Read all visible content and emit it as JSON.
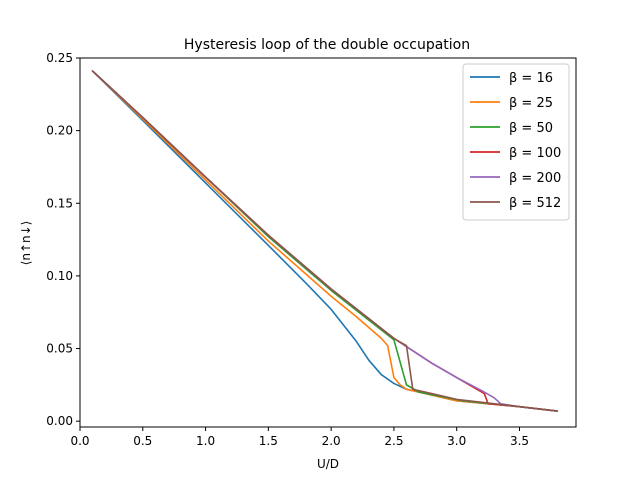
{
  "chart_data": {
    "type": "line",
    "title": "Hysteresis loop of the double occupation",
    "xlabel": "U/D",
    "ylabel": "⟨n↑n↓⟩",
    "xlim": [
      0.0,
      3.95
    ],
    "ylim": [
      -0.004,
      0.25
    ],
    "xticks": [
      0.0,
      0.5,
      1.0,
      1.5,
      2.0,
      2.5,
      3.0,
      3.5
    ],
    "xtick_labels": [
      "0.0",
      "0.5",
      "1.0",
      "1.5",
      "2.0",
      "2.5",
      "3.0",
      "3.5"
    ],
    "yticks": [
      0.0,
      0.05,
      0.1,
      0.15,
      0.2,
      0.25
    ],
    "ytick_labels": [
      "0.00",
      "0.05",
      "0.10",
      "0.15",
      "0.20",
      "0.25"
    ],
    "grid": false,
    "legend_position": "top-right",
    "series": [
      {
        "name": "β = 16",
        "color": "#1f77b4",
        "points": [
          [
            0.1,
            0.241
          ],
          [
            0.5,
            0.207
          ],
          [
            1.0,
            0.164
          ],
          [
            1.5,
            0.121
          ],
          [
            1.8,
            0.095
          ],
          [
            2.0,
            0.077
          ],
          [
            2.2,
            0.055
          ],
          [
            2.3,
            0.042
          ],
          [
            2.4,
            0.032
          ],
          [
            2.5,
            0.026
          ],
          [
            2.6,
            0.022
          ],
          [
            3.0,
            0.014
          ],
          [
            3.5,
            0.01
          ],
          [
            3.8,
            0.007
          ]
        ]
      },
      {
        "name": "β = 25",
        "color": "#ff7f0e",
        "points": [
          [
            0.1,
            0.241
          ],
          [
            0.5,
            0.208
          ],
          [
            1.0,
            0.166
          ],
          [
            1.5,
            0.124
          ],
          [
            2.0,
            0.086
          ],
          [
            2.2,
            0.072
          ],
          [
            2.4,
            0.057
          ],
          [
            2.45,
            0.052
          ],
          [
            2.5,
            0.03
          ],
          [
            2.55,
            0.025
          ],
          [
            2.6,
            0.022
          ],
          [
            3.0,
            0.014
          ],
          [
            3.5,
            0.01
          ],
          [
            3.8,
            0.007
          ]
        ]
      },
      {
        "name": "β = 50",
        "color": "#2ca02c",
        "points": [
          [
            0.1,
            0.241
          ],
          [
            0.5,
            0.209
          ],
          [
            1.0,
            0.168
          ],
          [
            1.5,
            0.127
          ],
          [
            2.0,
            0.09
          ],
          [
            2.5,
            0.056
          ],
          [
            2.6,
            0.025
          ],
          [
            2.7,
            0.02
          ],
          [
            3.05,
            0.014
          ],
          [
            3.5,
            0.01
          ],
          [
            3.8,
            0.007
          ]
        ]
      },
      {
        "name": "β = 100",
        "color": "#d62728",
        "points": [
          [
            0.1,
            0.241
          ],
          [
            0.5,
            0.209
          ],
          [
            1.0,
            0.168
          ],
          [
            1.5,
            0.128
          ],
          [
            2.0,
            0.091
          ],
          [
            2.5,
            0.057
          ],
          [
            2.8,
            0.04
          ],
          [
            3.0,
            0.03
          ],
          [
            3.22,
            0.019
          ],
          [
            3.25,
            0.012
          ],
          [
            3.5,
            0.01
          ],
          [
            3.8,
            0.007
          ]
        ]
      },
      {
        "name": "β = 200",
        "color": "#9467bd",
        "points": [
          [
            0.1,
            0.241
          ],
          [
            0.5,
            0.209
          ],
          [
            1.0,
            0.168
          ],
          [
            1.5,
            0.128
          ],
          [
            2.0,
            0.091
          ],
          [
            2.5,
            0.057
          ],
          [
            2.8,
            0.04
          ],
          [
            3.0,
            0.03
          ],
          [
            3.2,
            0.021
          ],
          [
            3.3,
            0.016
          ],
          [
            3.35,
            0.012
          ],
          [
            3.5,
            0.01
          ],
          [
            3.8,
            0.007
          ]
        ]
      },
      {
        "name": "β = 512",
        "color": "#8c564b",
        "points": [
          [
            0.1,
            0.241
          ],
          [
            0.5,
            0.209
          ],
          [
            1.0,
            0.168
          ],
          [
            1.5,
            0.128
          ],
          [
            2.0,
            0.091
          ],
          [
            2.5,
            0.057
          ],
          [
            2.6,
            0.052
          ],
          [
            2.65,
            0.022
          ],
          [
            2.8,
            0.019
          ],
          [
            3.0,
            0.015
          ],
          [
            3.2,
            0.013
          ],
          [
            3.5,
            0.01
          ],
          [
            3.8,
            0.007
          ]
        ]
      }
    ]
  }
}
